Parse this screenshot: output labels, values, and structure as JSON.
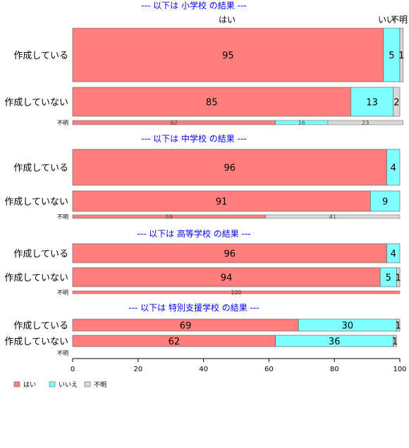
{
  "chart_data": {
    "type": "bar",
    "orientation": "horizontal",
    "stacked": true,
    "xlim": [
      0,
      100
    ],
    "xticks": [
      0,
      20,
      40,
      60,
      80,
      100
    ],
    "legend": {
      "position": "bottom-left",
      "items": [
        {
          "label": "はい",
          "color": "#FF7F7F"
        },
        {
          "label": "いいえ",
          "color": "#7FFFFF"
        },
        {
          "label": "不明",
          "color": "#D9D9D9"
        }
      ]
    },
    "top_column_labels": [
      "はい",
      "いい",
      "不明"
    ],
    "panels": [
      {
        "title": "--- 以下は 小学校 の結果 ---",
        "categories": [
          "作成している",
          "作成していない",
          "不明"
        ],
        "series": [
          {
            "name": "はい",
            "values": [
              95,
              85,
              62
            ]
          },
          {
            "name": "いいえ",
            "values": [
              5,
              13,
              16
            ]
          },
          {
            "name": "不明",
            "values": [
              1,
              2,
              23
            ]
          }
        ]
      },
      {
        "title": "--- 以下は 中学校 の結果 ---",
        "categories": [
          "作成している",
          "作成していない",
          "不明"
        ],
        "series": [
          {
            "name": "はい",
            "values": [
              96,
              91,
              59
            ]
          },
          {
            "name": "いいえ",
            "values": [
              4,
              9,
              0
            ]
          },
          {
            "name": "不明",
            "values": [
              0,
              0,
              41
            ]
          }
        ]
      },
      {
        "title": "--- 以下は 高等学校 の結果 ---",
        "categories": [
          "作成している",
          "作成していない",
          "不明"
        ],
        "series": [
          {
            "name": "はい",
            "values": [
              96,
              94,
              100
            ]
          },
          {
            "name": "いいえ",
            "values": [
              4,
              5,
              0
            ]
          },
          {
            "name": "不明",
            "values": [
              0,
              1,
              0
            ]
          }
        ]
      },
      {
        "title": "--- 以下は 特別支援学校 の結果 ---",
        "categories": [
          "作成している",
          "作成していない",
          "不明"
        ],
        "series": [
          {
            "name": "はい",
            "values": [
              69,
              62,
              0
            ]
          },
          {
            "name": "いいえ",
            "values": [
              30,
              36,
              0
            ]
          },
          {
            "name": "不明",
            "values": [
              1,
              1,
              0
            ]
          }
        ]
      }
    ]
  },
  "colors": {
    "title": "#0000FF",
    "yes": "#FF7F7F",
    "no": "#7FFFFF",
    "unknown": "#D9D9D9",
    "border": "#555555"
  }
}
